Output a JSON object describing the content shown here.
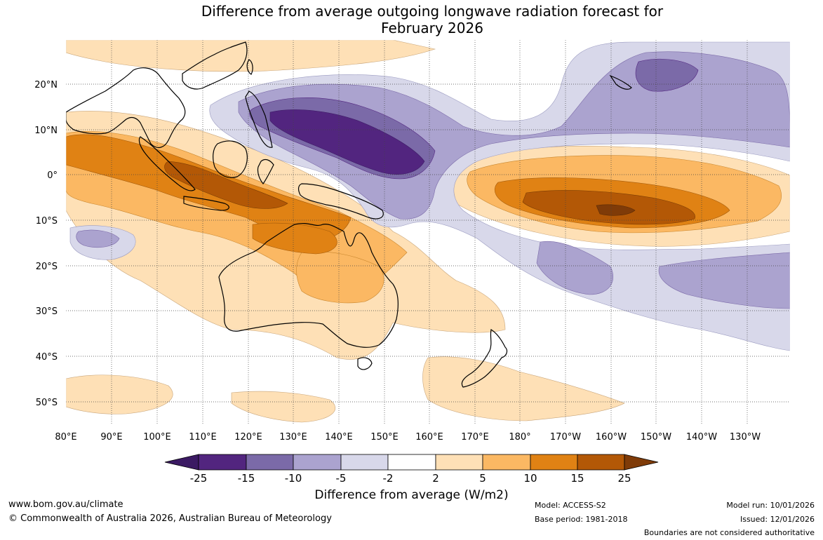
{
  "title_line1": "Difference from average outgoing longwave radiation forecast for",
  "title_line2": "February 2026",
  "lat_labels": [
    "20°N",
    "10°N",
    "0°",
    "10°S",
    "20°S",
    "30°S",
    "40°S",
    "50°S"
  ],
  "lon_labels": [
    "80°E",
    "90°E",
    "100°E",
    "110°E",
    "120°E",
    "130°E",
    "140°E",
    "150°E",
    "160°E",
    "170°E",
    "180°",
    "170°W",
    "160°W",
    "150°W",
    "140°W",
    "130°W"
  ],
  "legend": {
    "title": "Difference from average (W/m2)",
    "ticks": [
      "-25",
      "-15",
      "-10",
      "-5",
      "-2",
      "2",
      "5",
      "10",
      "15",
      "25"
    ],
    "colors": [
      "#3b1a63",
      "#52257f",
      "#7b6aa8",
      "#aba3cf",
      "#d8d8ea",
      "#ffffff",
      "#fee0b6",
      "#fbb863",
      "#e08214",
      "#b35806",
      "#7f3b08"
    ]
  },
  "footer": {
    "website": "www.bom.gov.au/climate",
    "copyright": "© Commonwealth of Australia 2026, Australian Bureau of Meteorology",
    "model": "Model: ACCESS-S2",
    "base_period": "Base period: 1981-2018",
    "model_run": "Model run: 10/01/2026",
    "issued": "Issued: 12/01/2026",
    "disclaimer": "Boundaries are not considered authoritative"
  }
}
